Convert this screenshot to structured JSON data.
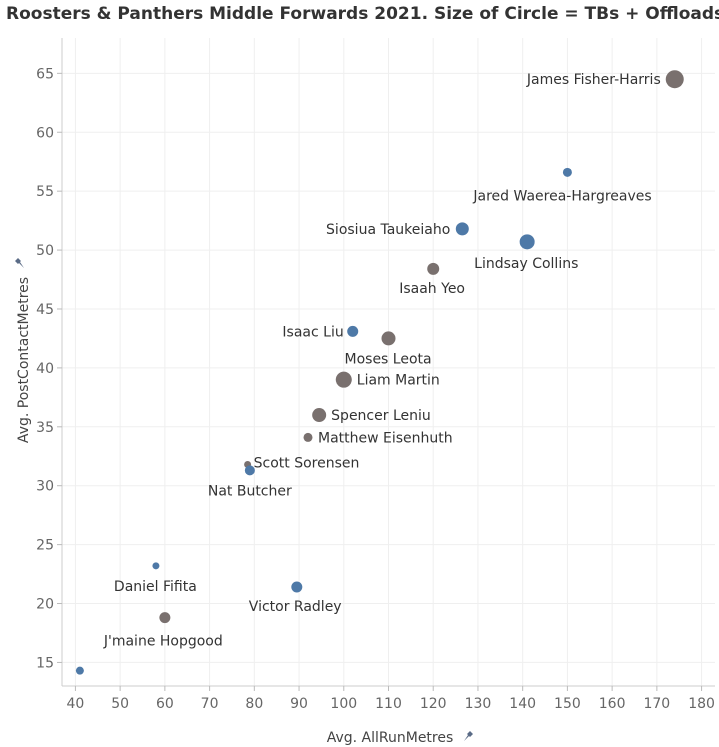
{
  "chart_data": {
    "type": "scatter",
    "title": "Roosters & Panthers Middle Forwards 2021. Size of Circle = TBs + Offloads.",
    "xlabel": "Avg. AllRunMetres",
    "ylabel": "Avg. PostContactMetres",
    "xlim": [
      37,
      183
    ],
    "ylim": [
      13,
      68
    ],
    "x_ticks": [
      40,
      50,
      60,
      70,
      80,
      90,
      100,
      110,
      120,
      130,
      140,
      150,
      160,
      170,
      180
    ],
    "y_ticks": [
      15,
      20,
      25,
      30,
      35,
      40,
      45,
      50,
      55,
      60,
      65
    ],
    "grid": true,
    "colors": {
      "blue": "#4e79a7",
      "brown": "#79706e"
    },
    "points": [
      {
        "label": "James Fisher-Harris",
        "x": 174,
        "y": 64.5,
        "size": 9,
        "color": "brown"
      },
      {
        "label": "Jared Waerea-Hargreaves",
        "x": 150,
        "y": 56.6,
        "size": 4.5,
        "color": "blue"
      },
      {
        "label": "Siosiua Taukeiaho",
        "x": 126.5,
        "y": 51.8,
        "size": 6.5,
        "color": "blue"
      },
      {
        "label": "Lindsay Collins",
        "x": 141,
        "y": 50.7,
        "size": 7.5,
        "color": "blue"
      },
      {
        "label": "Isaah Yeo",
        "x": 120,
        "y": 48.4,
        "size": 6,
        "color": "brown"
      },
      {
        "label": "Isaac Liu",
        "x": 102,
        "y": 43.1,
        "size": 5.5,
        "color": "blue"
      },
      {
        "label": "Moses Leota",
        "x": 110,
        "y": 42.5,
        "size": 7,
        "color": "brown"
      },
      {
        "label": "Liam Martin",
        "x": 100,
        "y": 39.0,
        "size": 8,
        "color": "brown"
      },
      {
        "label": "Spencer Leniu",
        "x": 94.5,
        "y": 36.0,
        "size": 7,
        "color": "brown"
      },
      {
        "label": "Matthew Eisenhuth",
        "x": 92,
        "y": 34.1,
        "size": 4.5,
        "color": "brown"
      },
      {
        "label": "Scott Sorensen",
        "x": 78.5,
        "y": 31.8,
        "size": 3.5,
        "color": "brown"
      },
      {
        "label": "Nat Butcher",
        "x": 79,
        "y": 31.3,
        "size": 5,
        "color": "blue"
      },
      {
        "label": "Daniel Fifita",
        "x": 58,
        "y": 23.2,
        "size": 3.5,
        "color": "blue"
      },
      {
        "label": "Victor Radley",
        "x": 89.5,
        "y": 21.4,
        "size": 5.5,
        "color": "blue"
      },
      {
        "label": "J'maine Hopgood",
        "x": 60,
        "y": 18.8,
        "size": 5.5,
        "color": "brown"
      },
      {
        "label": "",
        "x": 41,
        "y": 14.3,
        "size": 4,
        "color": "blue"
      }
    ]
  }
}
